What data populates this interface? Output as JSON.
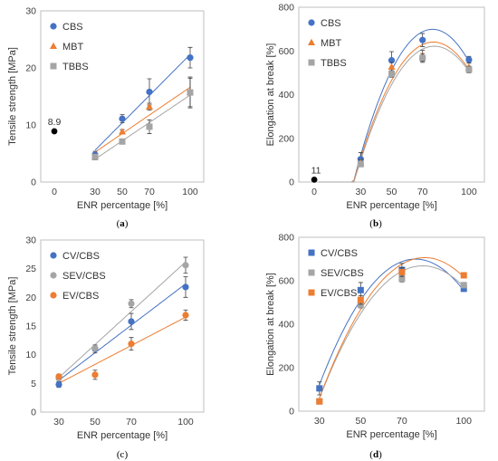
{
  "chart_data": [
    {
      "type": "scatter",
      "panel": "a",
      "xlabel": "ENR percentage [%]",
      "ylabel": "Tensile strength [MPa]",
      "xlim": [
        -10,
        110
      ],
      "ylim": [
        0,
        30
      ],
      "xticks": [
        "0",
        "30",
        "50",
        "70",
        "100"
      ],
      "yticks": [
        0,
        10,
        20,
        30
      ],
      "legend": "top-left",
      "grid": false,
      "trendline": "linear",
      "series": [
        {
          "name": "CBS",
          "marker": "circle",
          "color": "#4472C4",
          "x": [
            30,
            50,
            70,
            100
          ],
          "y": [
            4.8,
            11.1,
            15.8,
            21.8
          ],
          "err": [
            0.6,
            0.7,
            2.3,
            1.8
          ]
        },
        {
          "name": "MBT",
          "marker": "triangle",
          "color": "#ED7D31",
          "x": [
            30,
            50,
            70,
            100
          ],
          "y": [
            4.4,
            8.8,
            13.2,
            15.7
          ],
          "err": [
            0.4,
            0.4,
            0.6,
            2.5
          ]
        },
        {
          "name": "TBBS",
          "marker": "square",
          "color": "#A5A5A5",
          "x": [
            30,
            50,
            70,
            100
          ],
          "y": [
            4.4,
            7.1,
            9.7,
            15.7
          ],
          "err": [
            0.5,
            0.3,
            1.2,
            2.7
          ]
        }
      ],
      "reference": {
        "x": 0,
        "y": 8.9,
        "label": "8.9",
        "color": "#000000"
      }
    },
    {
      "type": "scatter",
      "panel": "b",
      "xlabel": "ENR percentage [%]",
      "ylabel": "Elongation at break [%]",
      "xlim": [
        -10,
        110
      ],
      "ylim": [
        0,
        800
      ],
      "xticks": [
        "0",
        "30",
        "50",
        "70",
        "100"
      ],
      "yticks": [
        0,
        200,
        400,
        600,
        800
      ],
      "legend": "top-left",
      "grid": false,
      "trendline": "polynomial",
      "series": [
        {
          "name": "CBS",
          "marker": "circle",
          "color": "#4472C4",
          "x": [
            30,
            50,
            70,
            100
          ],
          "y": [
            105,
            557,
            650,
            560
          ],
          "err": [
            30,
            40,
            30,
            15
          ]
        },
        {
          "name": "MBT",
          "marker": "triangle",
          "color": "#ED7D31",
          "x": [
            30,
            50,
            70,
            100
          ],
          "y": [
            88,
            527,
            578,
            525
          ],
          "err": [
            15,
            20,
            25,
            20
          ]
        },
        {
          "name": "TBBS",
          "marker": "square",
          "color": "#A5A5A5",
          "x": [
            30,
            50,
            70,
            100
          ],
          "y": [
            82,
            495,
            568,
            515
          ],
          "err": [
            10,
            15,
            20,
            15
          ]
        }
      ],
      "reference": {
        "x": 0,
        "y": 11,
        "label": "11",
        "color": "#000000"
      }
    },
    {
      "type": "scatter",
      "panel": "c",
      "xlabel": "ENR percentage [%]",
      "ylabel": "Tensile strength [MPa]",
      "xlim": [
        20,
        110
      ],
      "ylim": [
        0,
        30
      ],
      "xticks": [
        "30",
        "50",
        "70",
        "100"
      ],
      "yticks": [
        0,
        5,
        10,
        15,
        20,
        25,
        30
      ],
      "legend": "top-left",
      "grid": false,
      "trendline": "linear",
      "series": [
        {
          "name": "CV/CBS",
          "marker": "circle",
          "color": "#4472C4",
          "x": [
            30,
            50,
            70,
            100
          ],
          "y": [
            4.8,
            11.0,
            15.8,
            21.8
          ],
          "err": [
            0.5,
            0.7,
            1.4,
            1.8
          ]
        },
        {
          "name": "SEV/CBS",
          "marker": "circle",
          "color": "#A5A5A5",
          "x": [
            30,
            50,
            70,
            100
          ],
          "y": [
            5.9,
            11.1,
            18.9,
            25.6
          ],
          "err": [
            0.4,
            0.4,
            0.7,
            1.4
          ]
        },
        {
          "name": "EV/CBS",
          "marker": "circle",
          "color": "#ED7D31",
          "x": [
            30,
            50,
            70,
            100
          ],
          "y": [
            6.2,
            6.5,
            11.9,
            16.9
          ],
          "err": [
            0.4,
            0.8,
            1.1,
            0.9
          ]
        }
      ]
    },
    {
      "type": "scatter",
      "panel": "d",
      "xlabel": "ENR percentage [%]",
      "ylabel": "Elongation at break [%]",
      "xlim": [
        20,
        110
      ],
      "ylim": [
        0,
        800
      ],
      "xticks": [
        "30",
        "50",
        "70",
        "100"
      ],
      "yticks": [
        0,
        200,
        400,
        600,
        800
      ],
      "legend": "top-left",
      "grid": false,
      "trendline": "polynomial",
      "series": [
        {
          "name": "CV/CBS",
          "marker": "square",
          "color": "#4472C4",
          "x": [
            30,
            50,
            70,
            100
          ],
          "y": [
            105,
            557,
            650,
            563
          ],
          "err": [
            30,
            35,
            30,
            10
          ]
        },
        {
          "name": "SEV/CBS",
          "marker": "square",
          "color": "#A5A5A5",
          "x": [
            30,
            50,
            70,
            100
          ],
          "y": [
            45,
            490,
            610,
            580
          ],
          "err": [
            10,
            15,
            15,
            10
          ]
        },
        {
          "name": "EV/CBS",
          "marker": "square",
          "color": "#ED7D31",
          "x": [
            30,
            50,
            70,
            100
          ],
          "y": [
            45,
            512,
            640,
            625
          ],
          "err": [
            10,
            20,
            20,
            10
          ]
        }
      ]
    }
  ],
  "panel_labels": [
    "(a)",
    "(b)",
    "(c)",
    "(d)"
  ]
}
